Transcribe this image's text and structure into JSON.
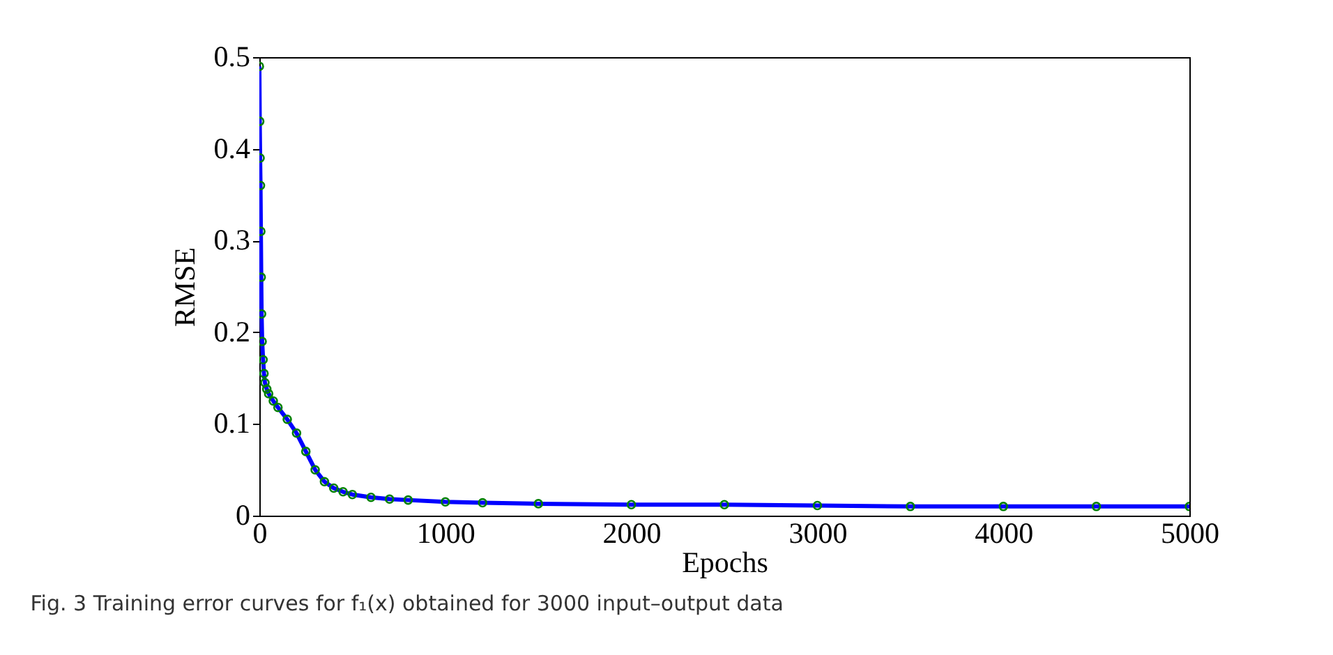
{
  "chart_data": {
    "type": "line",
    "xlabel": "Epochs",
    "ylabel": "RMSE",
    "annotations": [
      "Fig. 3 Training error curves for f₁(x) obtained for 3000 input–output data"
    ],
    "x": [
      0,
      2,
      4,
      6,
      8,
      10,
      12,
      15,
      20,
      25,
      30,
      40,
      50,
      75,
      100,
      150,
      200,
      250,
      300,
      350,
      400,
      450,
      500,
      600,
      700,
      800,
      1000,
      1200,
      1500,
      2000,
      2500,
      3000,
      3500,
      4000,
      4500,
      5000
    ],
    "series": [
      {
        "type": "line",
        "color": "#0000ff",
        "values": [
          0.49,
          0.43,
          0.39,
          0.36,
          0.31,
          0.26,
          0.22,
          0.19,
          0.17,
          0.155,
          0.145,
          0.138,
          0.133,
          0.125,
          0.118,
          0.105,
          0.09,
          0.07,
          0.05,
          0.037,
          0.03,
          0.026,
          0.023,
          0.02,
          0.018,
          0.017,
          0.015,
          0.014,
          0.013,
          0.012,
          0.012,
          0.011,
          0.01,
          0.01,
          0.01,
          0.01
        ]
      },
      {
        "type": "scatter",
        "color": "#008000",
        "marker": "circle",
        "values": [
          0.49,
          0.43,
          0.39,
          0.36,
          0.31,
          0.26,
          0.22,
          0.19,
          0.17,
          0.155,
          0.145,
          0.138,
          0.133,
          0.125,
          0.118,
          0.105,
          0.09,
          0.07,
          0.05,
          0.037,
          0.03,
          0.026,
          0.023,
          0.02,
          0.018,
          0.017,
          0.015,
          0.014,
          0.013,
          0.012,
          0.012,
          0.011,
          0.01,
          0.01,
          0.01,
          0.01
        ]
      }
    ],
    "xlim": [
      0,
      5000
    ],
    "xticks": [
      0,
      1000,
      2000,
      3000,
      4000,
      5000
    ],
    "ylim": [
      0,
      0.5
    ],
    "yticks": [
      0,
      0.1,
      0.2,
      0.3,
      0.4,
      0.5
    ],
    "grid": false
  }
}
